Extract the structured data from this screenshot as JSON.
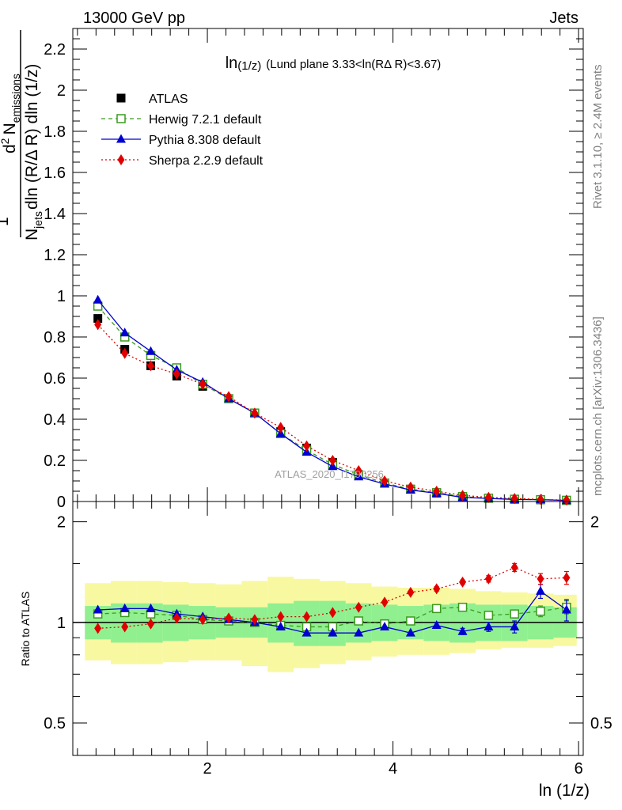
{
  "header": {
    "left": "13000 GeV pp",
    "right": "Jets"
  },
  "side_labels": {
    "rivet": "Rivet 3.1.10, ≥ 2.4M events",
    "mcplots": "mcplots.cern.ch [arXiv:1306.3436]"
  },
  "watermark": "ATLAS_2020_I1790256",
  "chart_data": [
    {
      "type": "scatter",
      "title": "ln(1/z) (Lund plane 3.33<ln(RΔ R)<3.67)",
      "title_parts": {
        "main": "ln",
        "sub": "(1/z)",
        "rest": "(Lund plane 3.33<ln(RΔ R)<3.67)"
      },
      "ylabel": {
        "one": "1",
        "n": "N",
        "jets": "jets",
        "den_rest": "dln (R/Δ R) dln (1/z)",
        "d2": "d",
        "two": "2",
        "n_emis": "N",
        "emissions": "emissions"
      },
      "xlim": [
        0.55,
        6.05
      ],
      "ylim": [
        0,
        2.3
      ],
      "yticks": [
        0,
        0.2,
        0.4,
        0.6,
        0.8,
        1,
        1.2,
        1.4,
        1.6,
        1.8,
        2,
        2.2
      ],
      "ytick_labels": [
        "0",
        "0.2",
        "0.4",
        "0.6",
        "0.8",
        "1",
        "1.2",
        "1.4",
        "1.6",
        "1.8",
        "2",
        "2.2"
      ],
      "legend": {
        "position": "top-left"
      },
      "x": [
        0.82,
        1.11,
        1.39,
        1.67,
        1.95,
        2.23,
        2.51,
        2.79,
        3.07,
        3.35,
        3.63,
        3.91,
        4.19,
        4.47,
        4.75,
        5.03,
        5.31,
        5.59,
        5.87
      ],
      "bin_edges": [
        0.68,
        0.96,
        1.24,
        1.52,
        1.8,
        2.09,
        2.37,
        2.65,
        2.93,
        3.21,
        3.49,
        3.77,
        4.05,
        4.33,
        4.61,
        4.89,
        5.17,
        5.45,
        5.73,
        5.98
      ],
      "series": [
        {
          "name": "ATLAS",
          "color": "#000000",
          "marker": "square",
          "values": [
            0.89,
            0.74,
            0.66,
            0.61,
            0.56,
            0.5,
            0.43,
            0.34,
            0.26,
            0.19,
            0.13,
            0.09,
            0.06,
            0.04,
            0.02,
            0.015,
            0.01,
            0.008,
            0.005
          ]
        },
        {
          "name": "Herwig 7.2.1 default",
          "color": "#3a9a1e",
          "marker": "open-square",
          "dash": "5,4",
          "values": [
            0.95,
            0.8,
            0.71,
            0.65,
            0.57,
            0.5,
            0.43,
            0.33,
            0.25,
            0.18,
            0.13,
            0.09,
            0.06,
            0.043,
            0.024,
            0.016,
            0.011,
            0.009,
            0.006
          ]
        },
        {
          "name": "Pythia 8.308 default",
          "color": "#0000d0",
          "marker": "triangle",
          "values": [
            0.98,
            0.82,
            0.73,
            0.64,
            0.58,
            0.5,
            0.43,
            0.33,
            0.24,
            0.17,
            0.12,
            0.085,
            0.056,
            0.04,
            0.02,
            0.015,
            0.01,
            0.009,
            0.005
          ]
        },
        {
          "name": "Sherpa 2.2.9 default",
          "color": "#e00000",
          "marker": "diamond",
          "dash": "2,3",
          "values": [
            0.86,
            0.72,
            0.66,
            0.62,
            0.57,
            0.51,
            0.43,
            0.36,
            0.27,
            0.2,
            0.15,
            0.1,
            0.07,
            0.05,
            0.03,
            0.02,
            0.015,
            0.01,
            0.007
          ]
        }
      ]
    },
    {
      "type": "scatter",
      "title": "",
      "xlabel": "ln (1/z)",
      "ylabel": "Ratio to ATLAS",
      "xlim": [
        0.55,
        6.05
      ],
      "ylim": [
        0.4,
        2.3
      ],
      "log_y": true,
      "yticks_left": [
        0.5,
        1,
        2
      ],
      "ytick_labels_left": [
        "0.5",
        "1",
        "2"
      ],
      "yticks_right": [
        0.5,
        2
      ],
      "ytick_labels_right": [
        "0.5",
        "2"
      ],
      "xticks": [
        2,
        4,
        6
      ],
      "xtick_labels": [
        "2",
        "4",
        "6"
      ],
      "x": [
        0.82,
        1.11,
        1.39,
        1.67,
        1.95,
        2.23,
        2.51,
        2.79,
        3.07,
        3.35,
        3.63,
        3.91,
        4.19,
        4.47,
        4.75,
        5.03,
        5.31,
        5.59,
        5.87
      ],
      "bin_edges": [
        0.68,
        0.96,
        1.24,
        1.52,
        1.8,
        2.09,
        2.37,
        2.65,
        2.93,
        3.21,
        3.49,
        3.77,
        4.05,
        4.33,
        4.61,
        4.89,
        5.17,
        5.45,
        5.73,
        5.98
      ],
      "band_inner": {
        "color": "#90f090",
        "low": [
          0.89,
          0.87,
          0.87,
          0.88,
          0.89,
          0.9,
          0.9,
          0.87,
          0.85,
          0.85,
          0.87,
          0.88,
          0.89,
          0.88,
          0.87,
          0.88,
          0.88,
          0.89,
          0.9
        ],
        "high": [
          1.12,
          1.14,
          1.14,
          1.13,
          1.12,
          1.11,
          1.11,
          1.14,
          1.16,
          1.16,
          1.14,
          1.13,
          1.12,
          1.13,
          1.14,
          1.13,
          1.13,
          1.12,
          1.11
        ]
      },
      "band_outer": {
        "color": "#f8f8a0",
        "low": [
          0.77,
          0.75,
          0.75,
          0.76,
          0.77,
          0.77,
          0.74,
          0.71,
          0.73,
          0.75,
          0.77,
          0.79,
          0.8,
          0.8,
          0.81,
          0.83,
          0.84,
          0.84,
          0.85
        ],
        "high": [
          1.31,
          1.33,
          1.33,
          1.32,
          1.31,
          1.3,
          1.33,
          1.37,
          1.35,
          1.33,
          1.31,
          1.28,
          1.27,
          1.27,
          1.26,
          1.24,
          1.23,
          1.22,
          1.21
        ]
      },
      "series": [
        {
          "name": "Herwig 7.2.1 default",
          "color": "#3a9a1e",
          "marker": "open-square",
          "dash": "5,4",
          "values": [
            1.06,
            1.07,
            1.06,
            1.05,
            1.02,
            1.01,
            1.0,
            0.98,
            0.97,
            0.97,
            1.01,
            0.99,
            1.01,
            1.1,
            1.11,
            1.05,
            1.06,
            1.08,
            1.11
          ],
          "errors": [
            0.01,
            0.01,
            0.01,
            0.01,
            0.01,
            0.01,
            0.01,
            0.01,
            0.01,
            0.01,
            0.01,
            0.01,
            0.01,
            0.01,
            0.02,
            0.02,
            0.03,
            0.04,
            0.05
          ]
        },
        {
          "name": "Pythia 8.308 default",
          "color": "#0000d0",
          "marker": "triangle",
          "values": [
            1.09,
            1.1,
            1.1,
            1.06,
            1.04,
            1.02,
            1.0,
            0.97,
            0.93,
            0.93,
            0.93,
            0.97,
            0.93,
            0.98,
            0.94,
            0.97,
            0.97,
            1.24,
            1.09
          ],
          "errors": [
            0.01,
            0.01,
            0.01,
            0.01,
            0.01,
            0.01,
            0.01,
            0.01,
            0.01,
            0.01,
            0.01,
            0.01,
            0.01,
            0.02,
            0.02,
            0.03,
            0.04,
            0.06,
            0.08
          ]
        },
        {
          "name": "Sherpa 2.2.9 default",
          "color": "#e00000",
          "marker": "diamond",
          "dash": "2,3",
          "values": [
            0.96,
            0.97,
            0.99,
            1.03,
            1.02,
            1.03,
            1.02,
            1.04,
            1.04,
            1.07,
            1.11,
            1.15,
            1.23,
            1.26,
            1.32,
            1.35,
            1.46,
            1.35,
            1.36
          ],
          "errors": [
            0.01,
            0.01,
            0.01,
            0.01,
            0.01,
            0.01,
            0.01,
            0.01,
            0.01,
            0.01,
            0.01,
            0.01,
            0.01,
            0.02,
            0.02,
            0.03,
            0.04,
            0.05,
            0.06
          ]
        }
      ]
    }
  ]
}
